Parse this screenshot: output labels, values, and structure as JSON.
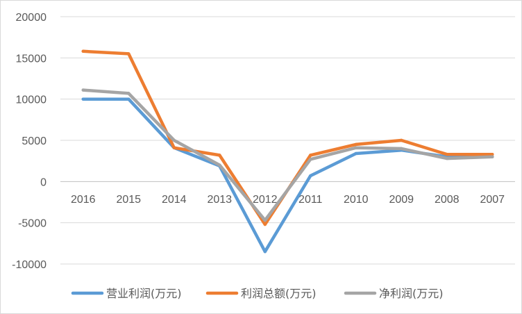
{
  "chart_data": {
    "type": "line",
    "categories": [
      "2016",
      "2015",
      "2014",
      "2013",
      "2012",
      "2011",
      "2010",
      "2009",
      "2008",
      "2007"
    ],
    "series": [
      {
        "name": "营业利润(万元)",
        "color": "#5b9bd5",
        "values": [
          10000,
          10000,
          4100,
          1900,
          -8500,
          700,
          3400,
          3800,
          3000,
          3000
        ]
      },
      {
        "name": "利润总额(万元)",
        "color": "#ed7d31",
        "values": [
          15800,
          15500,
          4100,
          3200,
          -5200,
          3200,
          4500,
          5000,
          3300,
          3300
        ]
      },
      {
        "name": "净利润(万元)",
        "color": "#a5a5a5",
        "values": [
          11100,
          10700,
          5000,
          2000,
          -4700,
          2700,
          4100,
          4000,
          2800,
          3000
        ]
      }
    ],
    "yticks": [
      "-10000",
      "-5000",
      "0",
      "5000",
      "10000",
      "15000",
      "20000"
    ],
    "ylim": [
      -10000,
      20000
    ],
    "title": "",
    "xlabel": "",
    "ylabel": "",
    "grid": true,
    "legend_position": "bottom"
  }
}
